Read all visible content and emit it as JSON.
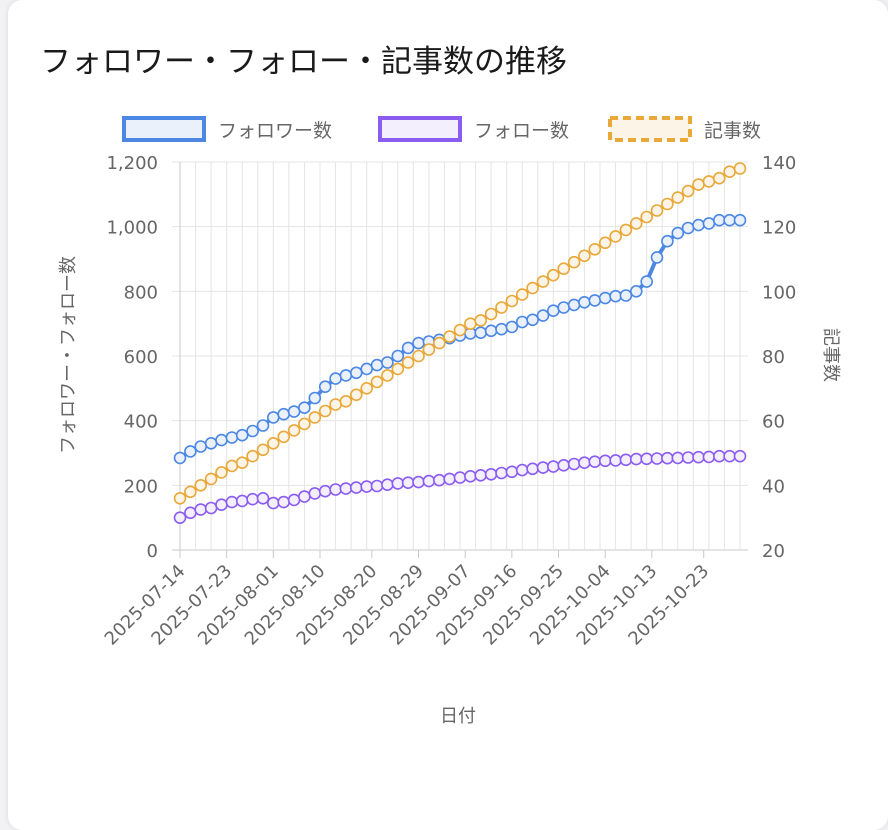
{
  "title": "フォロワー・フォロー・記事数の推移",
  "chart_data": {
    "type": "line",
    "x_type": "date",
    "x": [
      "2025-07-14",
      "2025-07-16",
      "2025-07-18",
      "2025-07-20",
      "2025-07-22",
      "2025-07-24",
      "2025-07-26",
      "2025-07-28",
      "2025-07-30",
      "2025-08-01",
      "2025-08-03",
      "2025-08-05",
      "2025-08-07",
      "2025-08-09",
      "2025-08-11",
      "2025-08-13",
      "2025-08-15",
      "2025-08-17",
      "2025-08-19",
      "2025-08-21",
      "2025-08-23",
      "2025-08-25",
      "2025-08-27",
      "2025-08-29",
      "2025-08-31",
      "2025-09-02",
      "2025-09-04",
      "2025-09-06",
      "2025-09-08",
      "2025-09-10",
      "2025-09-12",
      "2025-09-14",
      "2025-09-16",
      "2025-09-18",
      "2025-09-20",
      "2025-09-22",
      "2025-09-24",
      "2025-09-26",
      "2025-09-28",
      "2025-09-30",
      "2025-10-02",
      "2025-10-04",
      "2025-10-06",
      "2025-10-08",
      "2025-10-10",
      "2025-10-12",
      "2025-10-14",
      "2025-10-16",
      "2025-10-18",
      "2025-10-20",
      "2025-10-22",
      "2025-10-24",
      "2025-10-26",
      "2025-10-28",
      "2025-10-30"
    ],
    "x_tick_labels": [
      "2025-07-14",
      "2025-07-23",
      "2025-08-01",
      "2025-08-10",
      "2025-08-20",
      "2025-08-29",
      "2025-09-07",
      "2025-09-16",
      "2025-09-25",
      "2025-10-04",
      "2025-10-13",
      "2025-10-23"
    ],
    "xlabel": "日付",
    "ylabel_left": "フォロワー・フォロー数",
    "ylabel_right": "記事数",
    "ylim_left": [
      0,
      1200
    ],
    "ylim_right": [
      20,
      140
    ],
    "y_ticks_left": [
      "0",
      "200",
      "400",
      "600",
      "800",
      "1,000",
      "1,200"
    ],
    "y_ticks_right": [
      "20",
      "40",
      "60",
      "80",
      "100",
      "120",
      "140"
    ],
    "grid": true,
    "legend": "top",
    "series": [
      {
        "name": "フォロワー数",
        "axis": "left",
        "color": "#4b87e3",
        "fill": "#ebf1fb",
        "dashed": false,
        "values": [
          285,
          305,
          320,
          330,
          340,
          348,
          355,
          368,
          385,
          410,
          420,
          428,
          440,
          470,
          505,
          530,
          540,
          548,
          560,
          572,
          580,
          600,
          625,
          640,
          645,
          650,
          655,
          663,
          670,
          672,
          678,
          683,
          690,
          705,
          712,
          725,
          740,
          750,
          758,
          766,
          772,
          779,
          785,
          787,
          800,
          830,
          905,
          955,
          980,
          996,
          1005,
          1010,
          1020,
          1020,
          1020
        ]
      },
      {
        "name": "フォロー数",
        "axis": "left",
        "color": "#8b5cf0",
        "fill": "#f3effd",
        "dashed": false,
        "values": [
          100,
          115,
          125,
          130,
          140,
          148,
          152,
          157,
          160,
          145,
          148,
          155,
          165,
          175,
          182,
          187,
          190,
          193,
          196,
          198,
          202,
          206,
          208,
          210,
          213,
          216,
          220,
          224,
          228,
          231,
          234,
          238,
          242,
          247,
          251,
          255,
          258,
          262,
          266,
          270,
          273,
          276,
          277,
          279,
          281,
          282,
          283,
          284,
          285,
          286,
          287,
          288,
          290,
          290,
          290
        ]
      },
      {
        "name": "記事数",
        "axis": "right",
        "color": "#e8a83a",
        "fill": "#fcf4e6",
        "dashed": true,
        "values": [
          36,
          38,
          40,
          42,
          44,
          46,
          47,
          49,
          51,
          53,
          55,
          57,
          59,
          61,
          63,
          65,
          66,
          68,
          70,
          72,
          74,
          76,
          78,
          80,
          82,
          84,
          86,
          88,
          90,
          91,
          93,
          95,
          97,
          99,
          101,
          103,
          105,
          107,
          109,
          111,
          113,
          115,
          117,
          119,
          121,
          123,
          125,
          127,
          129,
          131,
          133,
          134,
          135,
          137,
          138
        ]
      }
    ]
  }
}
